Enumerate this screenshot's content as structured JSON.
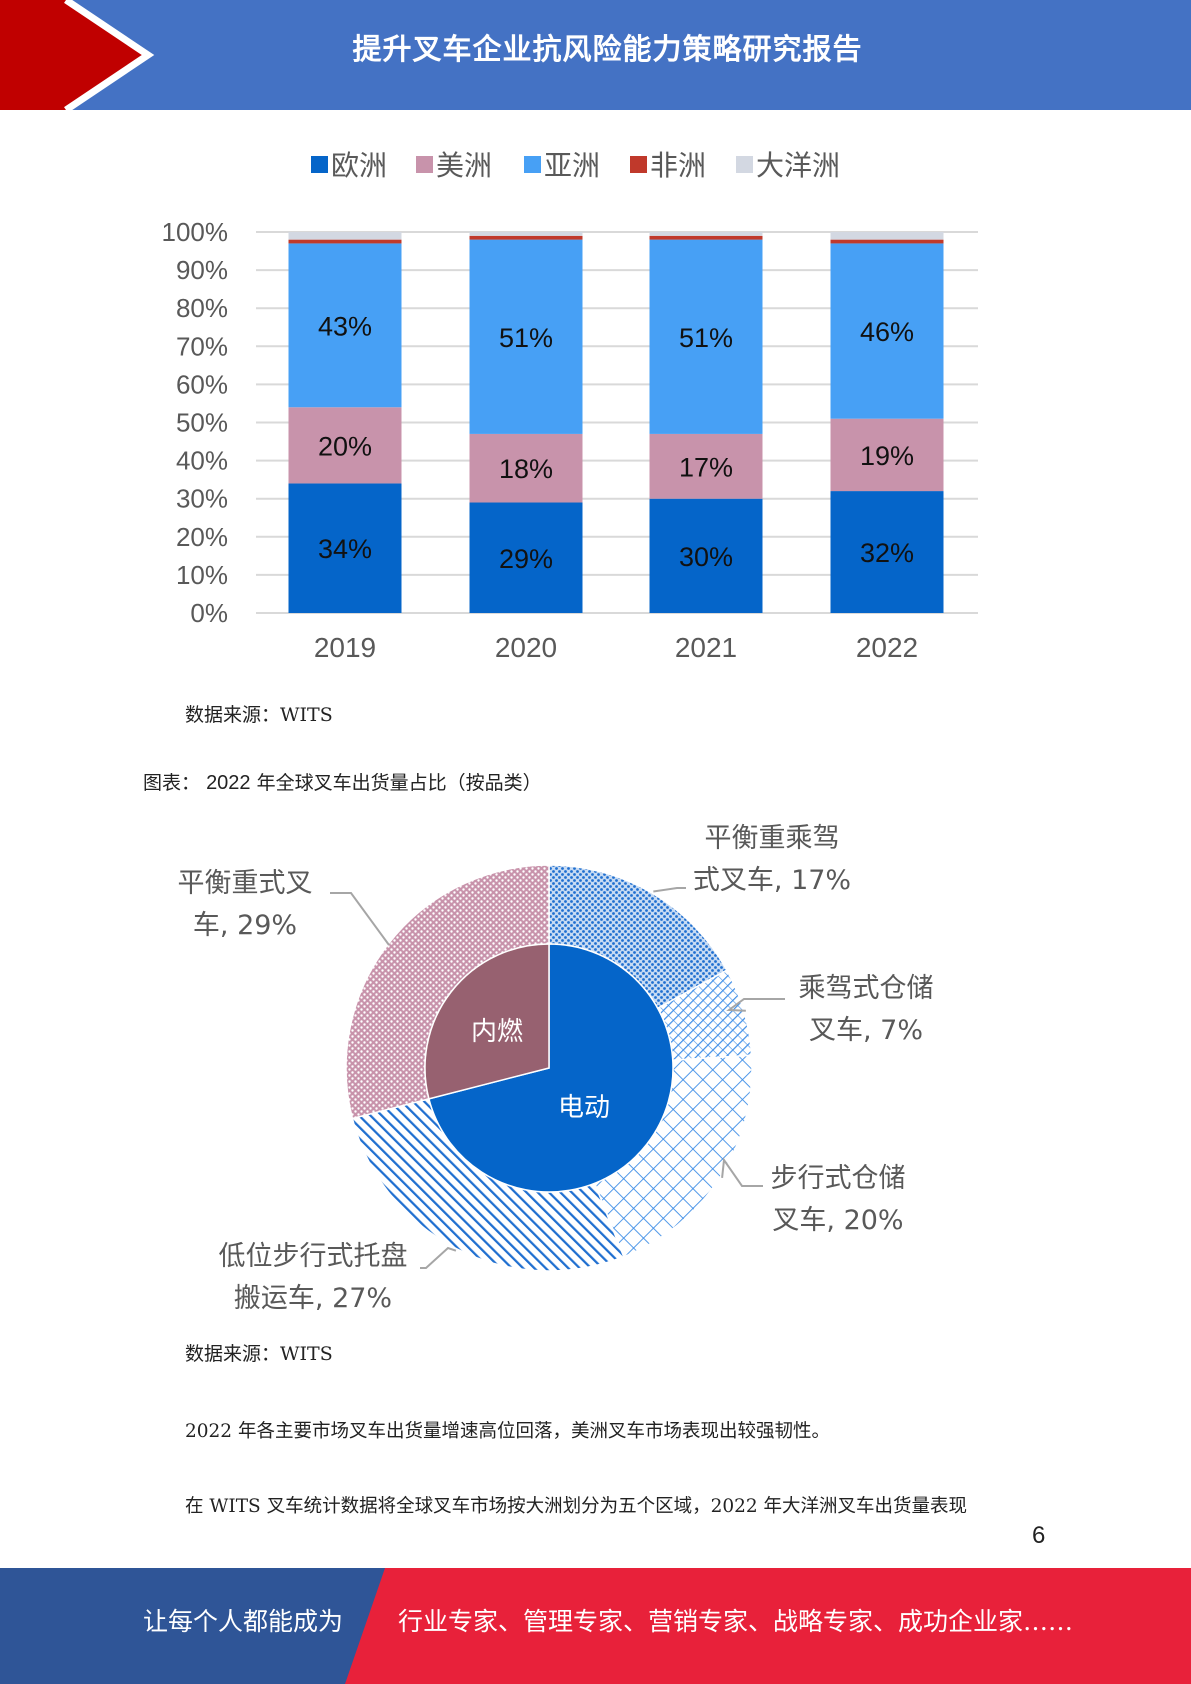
{
  "header": {
    "title": "提升叉车企业抗风险能力策略研究报告"
  },
  "colors": {
    "header_blue": "#4472c4",
    "header_red": "#c00000",
    "footer_blue": "#2f5597",
    "footer_red": "#e8213a"
  },
  "chart_data": [
    {
      "type": "bar",
      "stacked": true,
      "categories": [
        "2019",
        "2020",
        "2021",
        "2022"
      ],
      "series": [
        {
          "name": "欧洲",
          "color": "#0565c9",
          "values": [
            34,
            29,
            30,
            32
          ],
          "labels": [
            "34%",
            "29%",
            "30%",
            "32%"
          ]
        },
        {
          "name": "美洲",
          "color": "#c893ab",
          "values": [
            20,
            18,
            17,
            19
          ],
          "labels": [
            "20%",
            "18%",
            "17%",
            "19%"
          ]
        },
        {
          "name": "亚洲",
          "color": "#47a0f5",
          "values": [
            43,
            51,
            51,
            46
          ],
          "labels": [
            "43%",
            "51%",
            "51%",
            "46%"
          ]
        },
        {
          "name": "非洲",
          "color": "#c0392b",
          "values": [
            1,
            1,
            1,
            1
          ]
        },
        {
          "name": "大洋洲",
          "color": "#d3d8e2",
          "values": [
            2,
            1,
            1,
            2
          ]
        }
      ],
      "yticks": [
        "0%",
        "10%",
        "20%",
        "30%",
        "40%",
        "50%",
        "60%",
        "70%",
        "80%",
        "90%",
        "100%"
      ],
      "ylim": [
        0,
        100
      ],
      "grid": true,
      "legend": "top"
    },
    {
      "type": "pie",
      "donut": true,
      "inner": [
        {
          "label": "电动",
          "value": 71,
          "color": "#0565c9"
        },
        {
          "label": "内燃",
          "value": 29,
          "color": "#976170"
        }
      ],
      "outer": [
        {
          "label_lines": [
            "平衡重乘驾",
            "式叉车, 17%"
          ],
          "value": 17,
          "color": "#1f6fd0",
          "pattern": "dots"
        },
        {
          "label_lines": [
            "乘驾式仓储",
            "叉车, 7%"
          ],
          "value": 7,
          "color": "#3f8ee6",
          "pattern": "hatch"
        },
        {
          "label_lines": [
            "步行式仓储",
            "叉车, 20%"
          ],
          "value": 20,
          "color": "#3f8ee6",
          "pattern": "cross"
        },
        {
          "label_lines": [
            "低位步行式托盘",
            "搬运车, 27%"
          ],
          "value": 27,
          "color": "#1f6fd0",
          "pattern": "diag"
        },
        {
          "label_lines": [
            "平衡重式叉",
            "车, 29%"
          ],
          "value": 29,
          "color": "#c893ab",
          "pattern": "dots-pink"
        }
      ]
    }
  ],
  "sources": {
    "first": "数据来源：WITS",
    "second": "数据来源：WITS"
  },
  "figure": {
    "prefix": "图表：",
    "number": "2022",
    "title": "年全球叉车出货量占比（按品类）"
  },
  "paragraphs": [
    "2022 年各主要市场叉车出货量增速高位回落，美洲叉车市场表现出较强韧性。",
    "在 WITS 叉车统计数据将全球叉车市场按大洲划分为五个区域，2022 年大洋洲叉车出货量表现"
  ],
  "page_number": "6",
  "footer": {
    "left": "让每个人都能成为",
    "right": "行业专家、管理专家、营销专家、战略专家、成功企业家……"
  }
}
